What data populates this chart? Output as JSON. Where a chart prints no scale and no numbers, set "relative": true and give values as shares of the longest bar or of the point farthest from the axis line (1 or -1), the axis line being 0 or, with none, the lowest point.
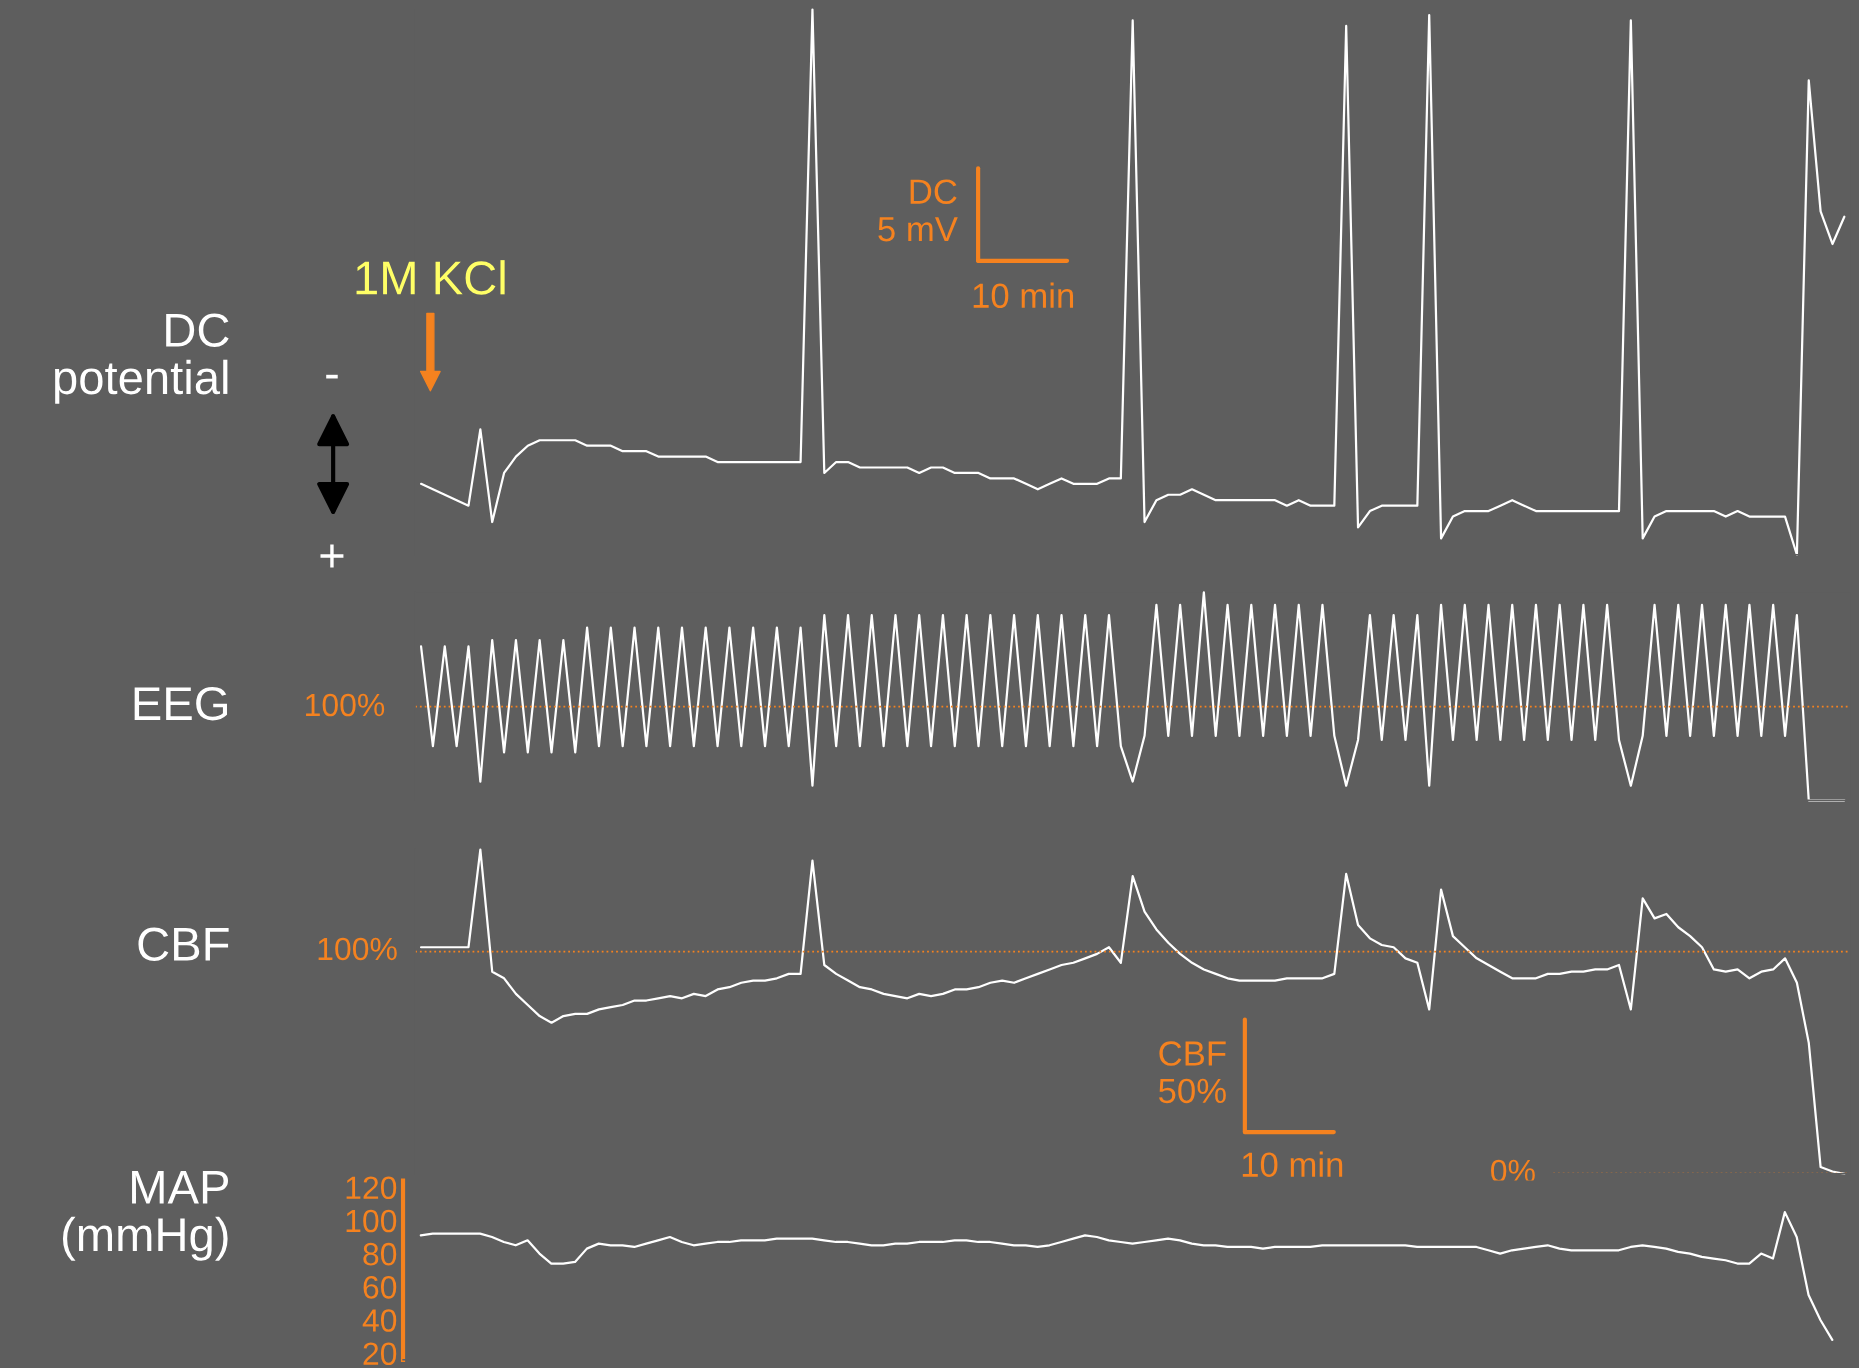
{
  "chart_data": [
    {
      "type": "line",
      "ylabel": "DC potential",
      "relative": true,
      "categories": [
        null,
        null,
        null,
        null,
        null,
        null,
        null,
        null,
        null,
        null,
        null,
        null,
        null,
        null,
        null,
        null,
        null,
        null,
        null,
        null,
        null,
        null,
        null,
        null,
        null,
        null,
        null,
        null,
        null,
        null,
        null,
        null,
        null,
        null,
        null,
        null,
        null,
        null,
        null,
        null,
        null,
        null,
        null,
        null,
        null,
        null,
        null,
        null,
        null,
        null,
        null,
        null,
        null,
        null,
        null,
        null,
        null,
        null,
        null,
        null,
        null,
        null,
        null,
        null,
        null,
        null,
        null,
        null,
        null,
        null,
        null,
        null,
        null,
        null,
        null,
        null,
        null,
        null,
        null,
        null,
        null,
        null,
        null,
        null,
        null,
        null,
        null,
        null,
        null,
        null,
        null,
        null,
        null,
        null,
        null,
        null,
        null,
        null,
        null,
        null,
        null,
        null,
        null,
        null,
        null,
        null,
        null,
        null,
        null,
        null,
        null,
        null,
        null,
        null,
        null,
        null,
        null,
        null,
        null,
        null,
        null
      ],
      "series": [
        {
          "color": "#ffffff",
          "values": [
            0.13,
            0.12,
            0.11,
            0.1,
            0.09,
            0.23,
            0.06,
            0.15,
            0.18,
            0.2,
            0.21,
            0.21,
            0.21,
            0.21,
            0.2,
            0.2,
            0.2,
            0.19,
            0.19,
            0.19,
            0.18,
            0.18,
            0.18,
            0.18,
            0.18,
            0.17,
            0.17,
            0.17,
            0.17,
            0.17,
            0.17,
            0.17,
            0.17,
            1.0,
            0.15,
            0.17,
            0.17,
            0.16,
            0.16,
            0.16,
            0.16,
            0.16,
            0.15,
            0.16,
            0.16,
            0.15,
            0.15,
            0.15,
            0.14,
            0.14,
            0.14,
            0.13,
            0.12,
            0.13,
            0.14,
            0.13,
            0.13,
            0.13,
            0.14,
            0.14,
            0.98,
            0.06,
            0.1,
            0.11,
            0.11,
            0.12,
            0.11,
            0.1,
            0.1,
            0.1,
            0.1,
            0.1,
            0.1,
            0.09,
            0.1,
            0.09,
            0.09,
            0.09,
            0.97,
            0.05,
            0.08,
            0.09,
            0.09,
            0.09,
            0.09,
            0.99,
            0.03,
            0.07,
            0.08,
            0.08,
            0.08,
            0.09,
            0.1,
            0.09,
            0.08,
            0.08,
            0.08,
            0.08,
            0.08,
            0.08,
            0.08,
            0.08,
            0.98,
            0.03,
            0.07,
            0.08,
            0.08,
            0.08,
            0.08,
            0.08,
            0.07,
            0.08,
            0.07,
            0.07,
            0.07,
            0.07,
            0,
            0.87,
            0.63,
            0.57,
            0.62
          ]
        }
      ],
      "annotations": [
        "1M KCl",
        "-",
        "+",
        "DC 5 mV",
        "10 min"
      ]
    },
    {
      "type": "line",
      "ylabel": "EEG",
      "relative": true,
      "categories": [
        null,
        null,
        null,
        null,
        null,
        null,
        null,
        null,
        null,
        null,
        null,
        null,
        null,
        null,
        null,
        null,
        null,
        null,
        null,
        null,
        null,
        null,
        null,
        null,
        null,
        null,
        null,
        null,
        null,
        null,
        null,
        null,
        null,
        null,
        null,
        null,
        null,
        null,
        null,
        null,
        null,
        null,
        null,
        null,
        null,
        null,
        null,
        null,
        null,
        null,
        null,
        null,
        null,
        null,
        null,
        null,
        null,
        null,
        null,
        null,
        null,
        null,
        null,
        null,
        null,
        null,
        null,
        null,
        null,
        null,
        null,
        null,
        null,
        null,
        null,
        null,
        null,
        null,
        null,
        null,
        null,
        null,
        null,
        null,
        null,
        null,
        null,
        null,
        null,
        null,
        null,
        null,
        null,
        null,
        null,
        null,
        null,
        null,
        null,
        null,
        null,
        null,
        null,
        null,
        null,
        null,
        null,
        null,
        null,
        null,
        null,
        null,
        null,
        null,
        null,
        null,
        null,
        null,
        null,
        null,
        null
      ],
      "series": [
        {
          "color": "#ffffff",
          "values": [
            0.74,
            0.26,
            0.74,
            0.26,
            0.74,
            0.09,
            0.77,
            0.23,
            0.77,
            0.23,
            0.77,
            0.23,
            0.77,
            0.23,
            0.83,
            0.26,
            0.83,
            0.26,
            0.83,
            0.26,
            0.83,
            0.26,
            0.83,
            0.26,
            0.83,
            0.26,
            0.83,
            0.26,
            0.83,
            0.26,
            0.83,
            0.26,
            0.83,
            0.07,
            0.89,
            0.26,
            0.89,
            0.26,
            0.89,
            0.26,
            0.89,
            0.26,
            0.89,
            0.26,
            0.89,
            0.26,
            0.89,
            0.26,
            0.89,
            0.26,
            0.89,
            0.26,
            0.89,
            0.26,
            0.89,
            0.26,
            0.89,
            0.26,
            0.89,
            0.26,
            0.09,
            0.31,
            0.94,
            0.31,
            0.94,
            0.31,
            1.0,
            0.31,
            0.94,
            0.31,
            0.94,
            0.31,
            0.94,
            0.31,
            0.94,
            0.31,
            0.94,
            0.31,
            0.07,
            0.29,
            0.89,
            0.29,
            0.89,
            0.29,
            0.89,
            0.07,
            0.94,
            0.29,
            0.94,
            0.29,
            0.94,
            0.29,
            0.94,
            0.29,
            0.94,
            0.29,
            0.94,
            0.29,
            0.94,
            0.29,
            0.94,
            0.29,
            0.07,
            0.31,
            0.94,
            0.31,
            0.94,
            0.31,
            0.94,
            0.31,
            0.94,
            0.31,
            0.94,
            0.31,
            0.94,
            0.31,
            0.89,
            0,
            0,
            0,
            0
          ]
        }
      ],
      "ref_lines": [
        {
          "axis": "y",
          "value": 0.45,
          "color": "#f5821f",
          "line_style": "dotted"
        }
      ],
      "annotations": [
        "100%"
      ]
    },
    {
      "type": "line",
      "ylabel": "CBF",
      "ylim": [
        0,
        146
      ],
      "tick_labels": false,
      "categories": [
        null,
        null,
        null,
        null,
        null,
        null,
        null,
        null,
        null,
        null,
        null,
        null,
        null,
        null,
        null,
        null,
        null,
        null,
        null,
        null,
        null,
        null,
        null,
        null,
        null,
        null,
        null,
        null,
        null,
        null,
        null,
        null,
        null,
        null,
        null,
        null,
        null,
        null,
        null,
        null,
        null,
        null,
        null,
        null,
        null,
        null,
        null,
        null,
        null,
        null,
        null,
        null,
        null,
        null,
        null,
        null,
        null,
        null,
        null,
        null,
        null,
        null,
        null,
        null,
        null,
        null,
        null,
        null,
        null,
        null,
        null,
        null,
        null,
        null,
        null,
        null,
        null,
        null,
        null,
        null,
        null,
        null,
        null,
        null,
        null,
        null,
        null,
        null,
        null,
        null,
        null,
        null,
        null,
        null,
        null,
        null,
        null,
        null,
        null,
        null,
        null,
        null,
        null,
        null,
        null,
        null,
        null,
        null,
        null,
        null,
        null,
        null,
        null,
        null,
        null,
        null,
        null,
        null,
        null,
        null,
        null
      ],
      "series": [
        {
          "color": "#ffffff",
          "values": [
            102,
            102,
            102,
            102,
            102,
            146,
            91,
            88,
            81,
            76,
            71,
            68,
            71,
            72,
            72,
            74,
            75,
            76,
            78,
            78,
            79,
            80,
            79,
            81,
            80,
            83,
            84,
            86,
            87,
            87,
            88,
            90,
            90,
            141,
            94,
            90,
            87,
            84,
            83,
            81,
            80,
            79,
            81,
            80,
            81,
            83,
            83,
            84,
            86,
            87,
            86,
            88,
            90,
            92,
            94,
            95,
            97,
            99,
            102,
            95,
            134,
            118,
            110,
            104,
            99,
            95,
            92,
            90,
            88,
            87,
            87,
            87,
            87,
            88,
            88,
            88,
            88,
            90,
            135,
            112,
            106,
            103,
            102,
            97,
            95,
            74,
            128,
            107,
            102,
            97,
            94,
            91,
            88,
            88,
            88,
            90,
            90,
            91,
            91,
            92,
            92,
            94,
            74,
            124,
            115,
            117,
            111,
            107,
            102,
            92,
            91,
            92,
            88,
            91,
            92,
            97,
            86,
            59,
            3,
            1,
            0
          ]
        }
      ],
      "ref_lines": [
        {
          "axis": "y",
          "value": 100,
          "label": "100%",
          "color": "#f5821f",
          "line_style": "dotted"
        },
        {
          "axis": "y",
          "value": 0,
          "label": "0%",
          "color": "#f5821f",
          "line_style": "dotted"
        }
      ],
      "annotations": [
        "CBF 50%",
        "10 min"
      ]
    },
    {
      "type": "line",
      "ylabel": "MAP (mmHg)",
      "ylim": [
        16,
        124
      ],
      "yticks": [
        20,
        40,
        60,
        80,
        100,
        120
      ],
      "tick_labels": "y",
      "categories": [
        null,
        null,
        null,
        null,
        null,
        null,
        null,
        null,
        null,
        null,
        null,
        null,
        null,
        null,
        null,
        null,
        null,
        null,
        null,
        null,
        null,
        null,
        null,
        null,
        null,
        null,
        null,
        null,
        null,
        null,
        null,
        null,
        null,
        null,
        null,
        null,
        null,
        null,
        null,
        null,
        null,
        null,
        null,
        null,
        null,
        null,
        null,
        null,
        null,
        null,
        null,
        null,
        null,
        null,
        null,
        null,
        null,
        null,
        null,
        null,
        null,
        null,
        null,
        null,
        null,
        null,
        null,
        null,
        null,
        null,
        null,
        null,
        null,
        null,
        null,
        null,
        null,
        null,
        null,
        null,
        null,
        null,
        null,
        null,
        null,
        null,
        null,
        null,
        null,
        null,
        null,
        null,
        null,
        null,
        null,
        null,
        null,
        null,
        null,
        null,
        null,
        null,
        null,
        null,
        null,
        null,
        null,
        null,
        null,
        null,
        null,
        null,
        null,
        null,
        null,
        null,
        null,
        null,
        null,
        null,
        null
      ],
      "series": [
        {
          "color": "#ffffff",
          "values": [
            91,
            92,
            92,
            92,
            92,
            92,
            90,
            87,
            85,
            88,
            80,
            74,
            74,
            75,
            83,
            86,
            85,
            85,
            84,
            86,
            88,
            90,
            87,
            85,
            86,
            87,
            87,
            88,
            88,
            88,
            89,
            89,
            89,
            89,
            88,
            87,
            87,
            86,
            85,
            85,
            86,
            86,
            87,
            87,
            87,
            88,
            88,
            87,
            87,
            86,
            85,
            85,
            84,
            85,
            87,
            89,
            91,
            90,
            88,
            87,
            86,
            87,
            88,
            89,
            88,
            86,
            85,
            85,
            84,
            84,
            84,
            83,
            84,
            84,
            84,
            84,
            85,
            85,
            85,
            85,
            85,
            85,
            85,
            85,
            84,
            84,
            84,
            84,
            84,
            84,
            82,
            80,
            82,
            83,
            84,
            85,
            83,
            82,
            82,
            82,
            82,
            82,
            84,
            85,
            84,
            83,
            81,
            80,
            78,
            77,
            76,
            74,
            74,
            80,
            77,
            105,
            90,
            55,
            40,
            28,
            null
          ]
        }
      ]
    }
  ]
}
